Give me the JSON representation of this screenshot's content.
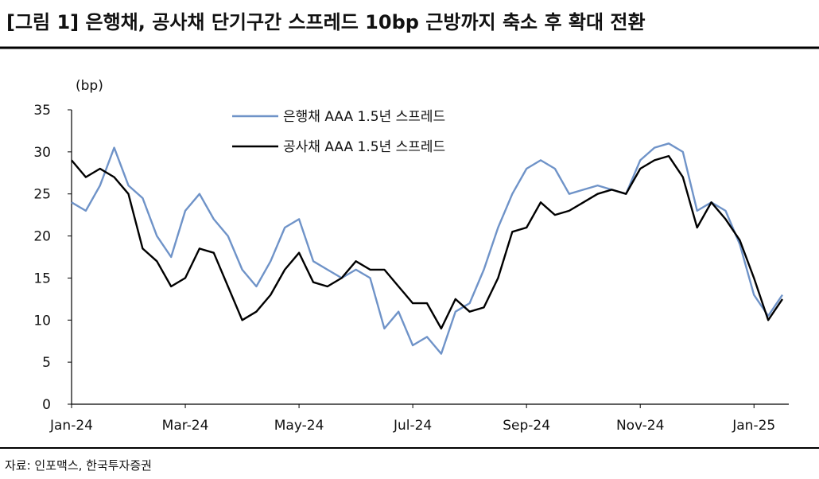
{
  "chart_data": {
    "type": "line",
    "title": "[그림 1] 은행채, 공사채 단기구간 스프레드 10bp 근방까지 축소 후 확대 전환",
    "y_label": "(bp)",
    "source": "자료: 인포맥스, 한국투자증권",
    "categories": [
      "Jan-24",
      null,
      null,
      null,
      null,
      null,
      null,
      null,
      "Mar-24",
      null,
      null,
      null,
      null,
      null,
      null,
      null,
      "May-24",
      null,
      null,
      null,
      null,
      null,
      null,
      null,
      "Jul-24",
      null,
      null,
      null,
      null,
      null,
      null,
      null,
      "Sep-24",
      null,
      null,
      null,
      null,
      null,
      null,
      null,
      "Nov-24",
      null,
      null,
      null,
      null,
      null,
      null,
      null,
      "Jan-25",
      null,
      null
    ],
    "series": [
      {
        "name": "은행채 AAA 1.5년 스프레드",
        "color": "#6f93c8",
        "values": [
          24,
          23,
          26,
          30.5,
          26,
          24.5,
          20,
          17.5,
          23,
          25,
          22,
          20,
          16,
          14,
          17,
          21,
          22,
          17,
          16,
          15,
          16,
          15,
          9,
          11,
          7,
          8,
          6,
          11,
          12,
          16,
          21,
          25,
          28,
          29,
          28,
          25,
          25.5,
          26,
          25.5,
          25,
          29,
          30.5,
          31,
          30,
          23,
          24,
          23,
          19,
          13,
          10.5,
          13
        ]
      },
      {
        "name": "공사채 AAA 1.5년 스프레드",
        "color": "#000000",
        "values": [
          29,
          27,
          28,
          27,
          25,
          18.5,
          17,
          14,
          15,
          18.5,
          18,
          14,
          10,
          11,
          13,
          16,
          18,
          14.5,
          14,
          15,
          17,
          16,
          16,
          14,
          12,
          12,
          9,
          12.5,
          11,
          11.5,
          15,
          20.5,
          21,
          24,
          22.5,
          23,
          24,
          25,
          25.5,
          25,
          28,
          29,
          29.5,
          27,
          21,
          24,
          22,
          19.5,
          15,
          10,
          12.5
        ]
      }
    ],
    "ylim": [
      0,
      35
    ],
    "yticks": [
      0,
      5,
      10,
      15,
      20,
      25,
      30,
      35
    ],
    "grid": false
  }
}
